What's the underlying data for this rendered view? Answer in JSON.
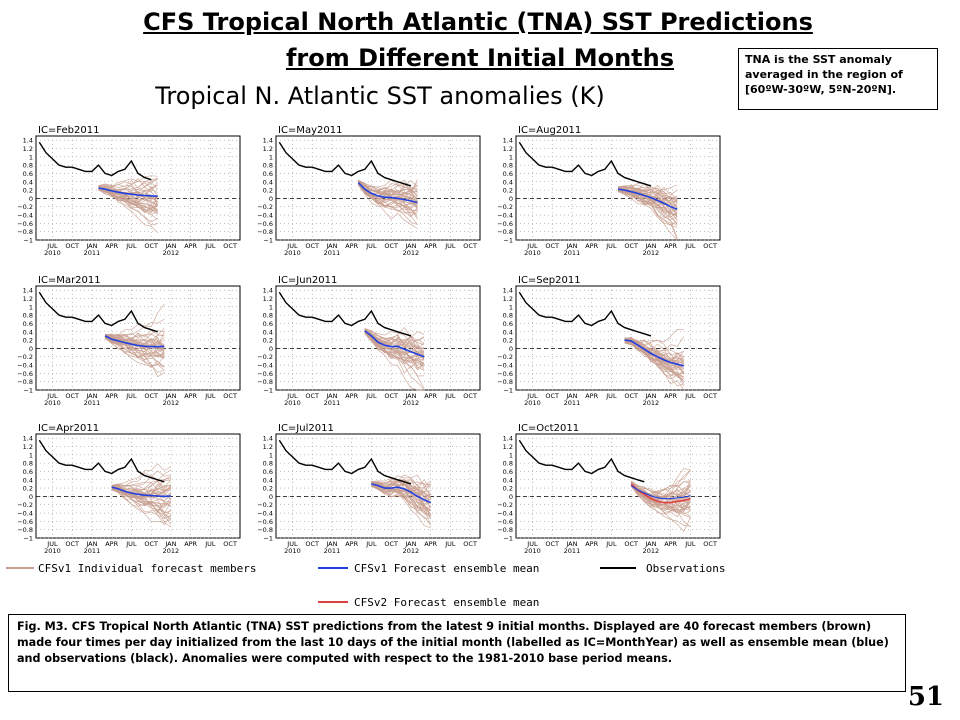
{
  "slide": {
    "title_line1": "CFS Tropical North Atlantic (TNA) SST Predictions",
    "title_line2": "from Different Initial Months",
    "note": "TNA is the SST anomaly averaged in the region of [60ºW-30ºW, 5ºN-20ºN].",
    "caption": "Fig. M3. CFS Tropical North Atlantic (TNA) SST predictions from the latest 9 initial months. Displayed are 40 forecast members (brown) made four times per day initialized from the last 10 days of the initial month (labelled as IC=MonthYear) as well as ensemble mean (blue) and observations (black). Anomalies were computed with respect to the 1981-2010  base period means.",
    "page_number": "51"
  },
  "chart_data": {
    "type": "line",
    "title": "Tropical N. Atlantic SST anomalies (K)",
    "ylim": [
      -1,
      1.5
    ],
    "yticks": [
      "1.4",
      "1.2",
      "1",
      "0.8",
      "0.6",
      "0.4",
      "0.2",
      "0",
      "−0.2",
      "−0.4",
      "−0.6",
      "−0.8",
      "−1"
    ],
    "ytick_values": [
      1.4,
      1.2,
      1,
      0.8,
      0.6,
      0.4,
      0.2,
      0,
      -0.2,
      -0.4,
      -0.6,
      -0.8,
      -1
    ],
    "xticks": [
      "JUL",
      "OCT",
      "JAN",
      "APR",
      "JUL",
      "OCT",
      "JAN",
      "APR",
      "JUL",
      "OCT"
    ],
    "xyears": [
      "2010",
      "2011",
      "2012"
    ],
    "months_axis": [
      "2010-05",
      "2010-06",
      "2010-07",
      "2010-08",
      "2010-09",
      "2010-10",
      "2010-11",
      "2010-12",
      "2011-01",
      "2011-02",
      "2011-03",
      "2011-04",
      "2011-05",
      "2011-06",
      "2011-07",
      "2011-08",
      "2011-09",
      "2011-10",
      "2011-11",
      "2011-12",
      "2012-01",
      "2012-02",
      "2012-03",
      "2012-04",
      "2012-05",
      "2012-06",
      "2012-07",
      "2012-08",
      "2012-09",
      "2012-10",
      "2012-11"
    ],
    "grid": true,
    "observations": [
      1.35,
      1.1,
      0.95,
      0.8,
      0.75,
      0.75,
      0.7,
      0.65,
      0.65,
      0.8,
      0.6,
      0.55,
      0.65,
      0.7,
      0.9,
      0.6,
      0.5,
      0.45,
      0.4,
      0.35,
      0.3
    ],
    "legend": [
      {
        "name": "CFSv1 Individual forecast members",
        "color": "#c8a090"
      },
      {
        "name": "CFSv1 Forecast ensemble mean",
        "color": "#2040e0"
      },
      {
        "name": "Observations",
        "color": "#000000"
      },
      {
        "name": "CFSv2 Forecast ensemble mean",
        "color": "#e04040"
      }
    ],
    "panels": [
      {
        "label": "IC=Feb2011",
        "start": 9,
        "obs_end": 17,
        "mean": [
          0.25,
          0.22,
          0.18,
          0.15,
          0.12,
          0.1,
          0.08,
          0.07,
          0.06,
          0.05
        ]
      },
      {
        "label": "IC=May2011",
        "start": 12,
        "obs_end": 20,
        "mean": [
          0.38,
          0.22,
          0.12,
          0.06,
          0.03,
          0.02,
          0.0,
          -0.03,
          -0.06,
          -0.1
        ]
      },
      {
        "label": "IC=Aug2011",
        "start": 15,
        "obs_end": 20,
        "mean": [
          0.22,
          0.2,
          0.16,
          0.12,
          0.07,
          0.02,
          -0.05,
          -0.12,
          -0.2,
          -0.26
        ]
      },
      {
        "label": "IC=Mar2011",
        "start": 10,
        "obs_end": 18,
        "mean": [
          0.3,
          0.22,
          0.18,
          0.14,
          0.1,
          0.07,
          0.05,
          0.04,
          0.04,
          0.05
        ]
      },
      {
        "label": "IC=Jun2011",
        "start": 13,
        "obs_end": 20,
        "mean": [
          0.42,
          0.3,
          0.15,
          0.08,
          0.04,
          0.05,
          -0.02,
          -0.08,
          -0.14,
          -0.2
        ]
      },
      {
        "label": "IC=Sep2011",
        "start": 16,
        "obs_end": 20,
        "mean": [
          0.2,
          0.18,
          0.08,
          -0.02,
          -0.12,
          -0.2,
          -0.28,
          -0.34,
          -0.38,
          -0.42
        ]
      },
      {
        "label": "IC=Apr2011",
        "start": 11,
        "obs_end": 19,
        "mean": [
          0.22,
          0.18,
          0.12,
          0.08,
          0.05,
          0.03,
          0.02,
          0.01,
          0.0,
          0.01
        ]
      },
      {
        "label": "IC=Jul2011",
        "start": 14,
        "obs_end": 20,
        "mean": [
          0.3,
          0.26,
          0.2,
          0.2,
          0.22,
          0.18,
          0.1,
          0.0,
          -0.08,
          -0.15
        ]
      },
      {
        "label": "IC=Oct2011",
        "start": 17,
        "obs_end": 19,
        "mean": [
          0.3,
          0.15,
          0.05,
          -0.05,
          -0.12,
          -0.15,
          -0.15,
          -0.12,
          -0.1,
          -0.05
        ],
        "mean_color": "#e04040"
      }
    ]
  }
}
